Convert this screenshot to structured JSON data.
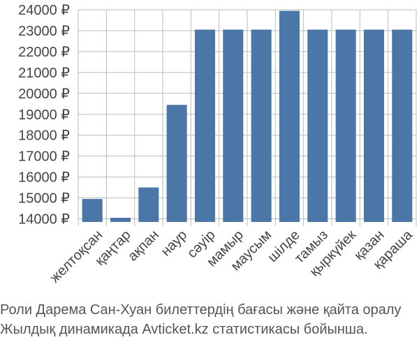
{
  "chart_data": {
    "type": "bar",
    "categories": [
      "желтоқсан",
      "қаңтар",
      "ақпан",
      "наур",
      "сәуір",
      "мамыр",
      "маусым",
      "шілде",
      "тамыз",
      "қыркүйек",
      "қазан",
      "қараша"
    ],
    "values": [
      14950,
      14050,
      15500,
      19450,
      23050,
      23050,
      23050,
      23950,
      23050,
      23050,
      23050,
      23050
    ],
    "ylim": [
      13850,
      24000
    ],
    "yticks": [
      14000,
      15000,
      16000,
      17000,
      18000,
      19000,
      20000,
      21000,
      22000,
      23000,
      24000
    ],
    "tick_suffix": " ₽",
    "bar_color": "#4a76a8",
    "grid_color": "#bbbbbb",
    "grid": true
  },
  "caption": {
    "line1": "Роли Дарема Сан-Хуан билеттердің бағасы және қайта оралу",
    "line2": "Жылдық динамикада Avticket.kz статистикасы бойынша."
  }
}
